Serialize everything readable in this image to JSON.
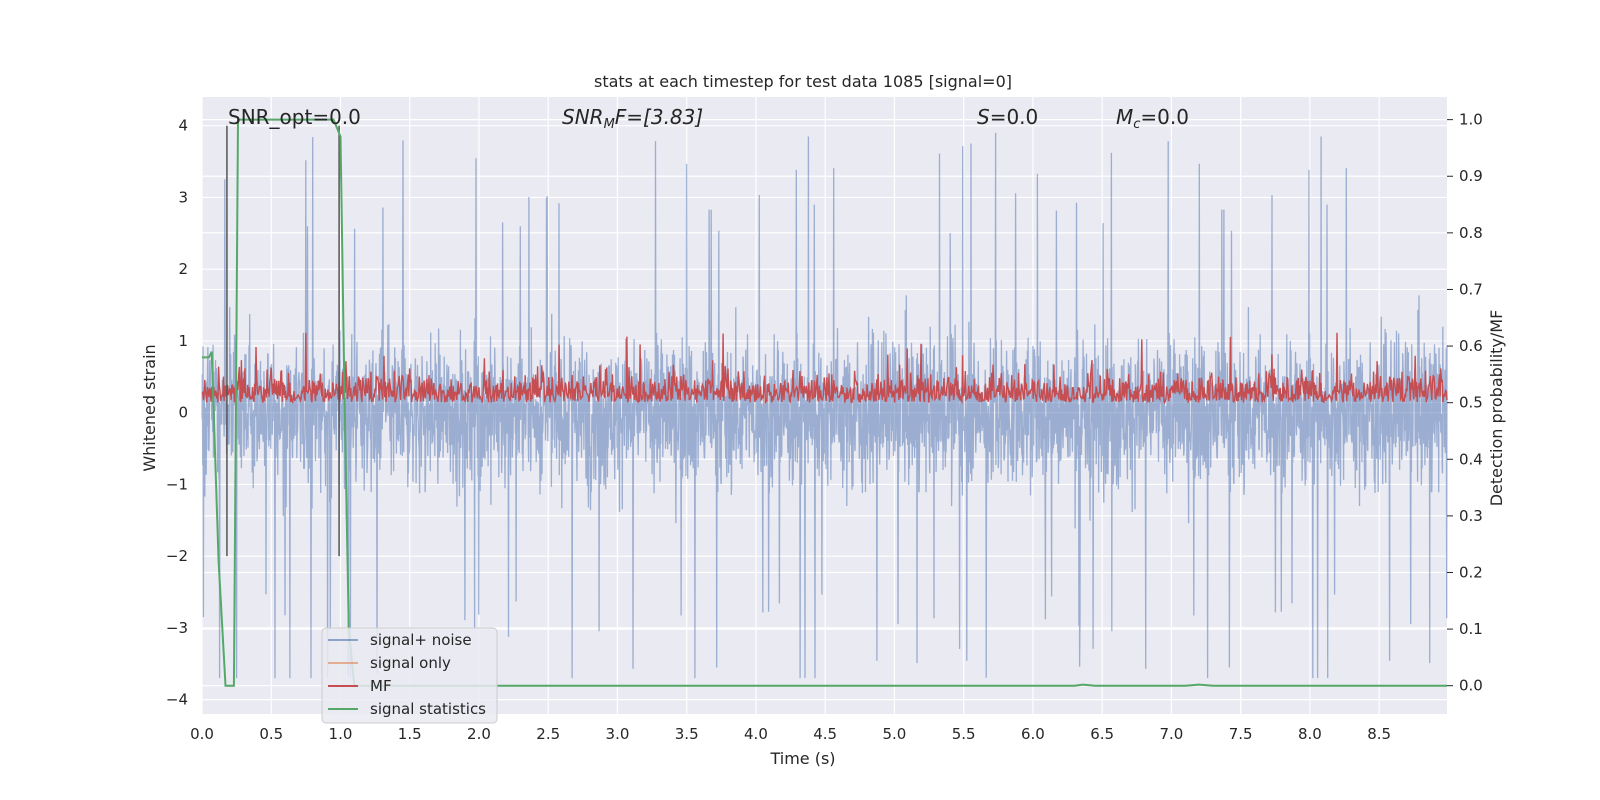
{
  "chart_data": {
    "type": "line",
    "title": "stats at each timestep for test data 1085 [signal=0]",
    "xlabel": "Time (s)",
    "ylabel_left": "Whitened strain",
    "ylabel_right": "Detection probability/MF",
    "xlim": [
      0.0,
      8.99
    ],
    "ylim_left": [
      -4.2,
      4.4
    ],
    "ylim_right": [
      -0.05,
      1.04
    ],
    "xticks": [
      "0.0",
      "0.5",
      "1.0",
      "1.5",
      "2.0",
      "2.5",
      "3.0",
      "3.5",
      "4.0",
      "4.5",
      "5.0",
      "5.5",
      "6.0",
      "6.5",
      "7.0",
      "7.5",
      "8.0",
      "8.5"
    ],
    "yticks_left": [
      "4",
      "3",
      "2",
      "1",
      "0",
      "−1",
      "−2",
      "−3",
      "−4"
    ],
    "yticks_right": [
      "1.0",
      "0.9",
      "0.8",
      "0.7",
      "0.6",
      "0.5",
      "0.4",
      "0.3",
      "0.2",
      "0.1",
      "0.0"
    ],
    "grid": true,
    "legend_position": "lower-left",
    "annotations": {
      "snr_opt": "SNR_opt=0.0",
      "snr_mf_base": "SNR",
      "snr_mf_sub": "M",
      "snr_mf_rest": "F=[3.83]",
      "s_base": "S",
      "s_rest": "=0.0",
      "mc_base": "M",
      "mc_sub": "c",
      "mc_rest": "=0.0"
    },
    "vertical_markers_x": [
      0.18,
      0.99
    ],
    "series": [
      {
        "name": "signal+ noise",
        "color": "#4c72b0",
        "alpha": 0.5,
        "axis": "left",
        "noise_envelope": {
          "mean": 0.0,
          "typical_max": 2.5,
          "typical_min": -2.5,
          "peak_max": 4.0,
          "peak_min": -3.7
        }
      },
      {
        "name": "signal only",
        "color": "#dd8452",
        "axis": "left",
        "values": []
      },
      {
        "name": "MF",
        "color": "#c44e52",
        "axis": "right",
        "band": {
          "center": 0.52,
          "low": 0.5,
          "high": 0.62,
          "peak": 0.625
        }
      },
      {
        "name": "signal statistics",
        "color": "#55a868",
        "axis": "right",
        "x": [
          0.0,
          0.05,
          0.07,
          0.12,
          0.17,
          0.23,
          0.26,
          0.3,
          0.6,
          0.95,
          1.0,
          1.03,
          1.06,
          1.1,
          2.0,
          6.3,
          6.36,
          6.45,
          7.1,
          7.2,
          7.3,
          8.99
        ],
        "values": [
          0.58,
          0.58,
          0.59,
          0.22,
          0.0,
          0.0,
          1.0,
          1.0,
          1.0,
          1.0,
          0.97,
          0.5,
          0.1,
          0.0,
          0.0,
          0.0,
          0.002,
          0.0,
          0.0,
          0.002,
          0.0,
          0.0
        ]
      }
    ]
  },
  "colors": {
    "axes_bg": "#eaeaf2",
    "grid": "#ffffff",
    "marker": "#555555"
  }
}
